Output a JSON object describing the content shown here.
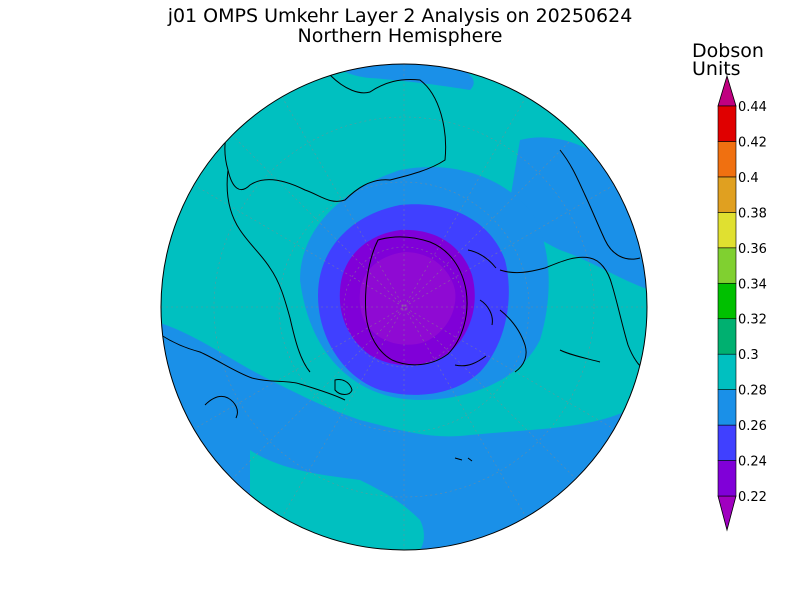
{
  "title": "j01 OMPS Umkehr Layer 2 Analysis on 20250624",
  "subtitle": "Northern Hemisphere",
  "colorbar": {
    "unit_line1": "Dobson",
    "unit_line2": "Units",
    "levels": [
      "0.22",
      "0.24",
      "0.26",
      "0.28",
      "0.3",
      "0.32",
      "0.34",
      "0.36",
      "0.38",
      "0.4",
      "0.42",
      "0.44"
    ],
    "colors": [
      "#8000d8",
      "#4040ff",
      "#1a90e8",
      "#00c0c0",
      "#00b070",
      "#00c000",
      "#80d030",
      "#e0e030",
      "#e0a020",
      "#f07010",
      "#e00000"
    ],
    "low_arrow_color": "#a000c0",
    "high_arrow_color": "#c00080"
  },
  "map": {
    "projection": "north-polar-stereographic",
    "center_lon": 0,
    "colors": {
      "background_band": "#00c0c0",
      "low_band": "#1a90e8",
      "lower_band": "#4040ff",
      "lowest_band": "#8000d8",
      "coastline": "#000000"
    }
  }
}
